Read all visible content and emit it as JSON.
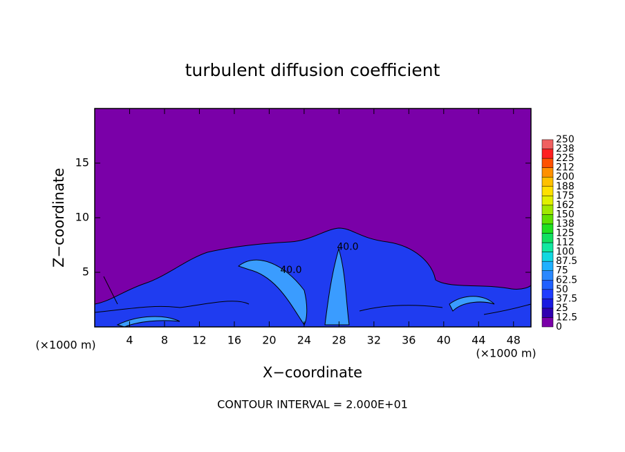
{
  "chart_data": {
    "type": "contour",
    "title": "turbulent diffusion coefficient",
    "x_label": "X−coordinate",
    "y_label": "Z−coordinate",
    "x_unit": "(×1000 m)",
    "y_unit": "(×1000 m)",
    "xlim": [
      0,
      50
    ],
    "xticks": [
      4,
      8,
      12,
      16,
      20,
      24,
      28,
      32,
      36,
      40,
      44,
      48
    ],
    "ylim": [
      0,
      20
    ],
    "yticks": [
      5,
      10,
      15
    ],
    "contour_labels": [
      {
        "value": 40,
        "label": "40.0",
        "x": 29,
        "z": 7.3
      },
      {
        "value": 40,
        "label": "40.0",
        "x": 22.5,
        "z": 5.2
      }
    ],
    "note": "CONTOUR INTERVAL = 2.000E+01",
    "colorbar": {
      "levels": [
        0,
        12.5,
        25,
        {
          "value": 37.5,
          "label": "37.5"
        },
        50,
        62.5,
        75,
        87.5,
        100,
        {
          "value": 112.5,
          "label": "112"
        },
        125,
        {
          "value": 137.5,
          "label": "138"
        },
        150,
        {
          "value": 162.5,
          "label": "162"
        },
        175,
        {
          "value": 187.5,
          "label": "188"
        },
        200,
        {
          "value": 212.5,
          "label": "212"
        },
        225,
        {
          "value": 237.5,
          "label": "238"
        },
        250
      ],
      "colors": [
        "#7a00a8",
        "#3000b0",
        "#1a1ae0",
        "#1f3cff",
        "#2060ff",
        "#2a88ff",
        "#20b0ff",
        "#10d8e0",
        "#10e8a0",
        "#10e060",
        "#20e020",
        "#60e000",
        "#a0e800",
        "#e0f000",
        "#ffe000",
        "#ffc000",
        "#ff9000",
        "#ff5000",
        "#ff2020",
        "#f06060"
      ]
    }
  }
}
